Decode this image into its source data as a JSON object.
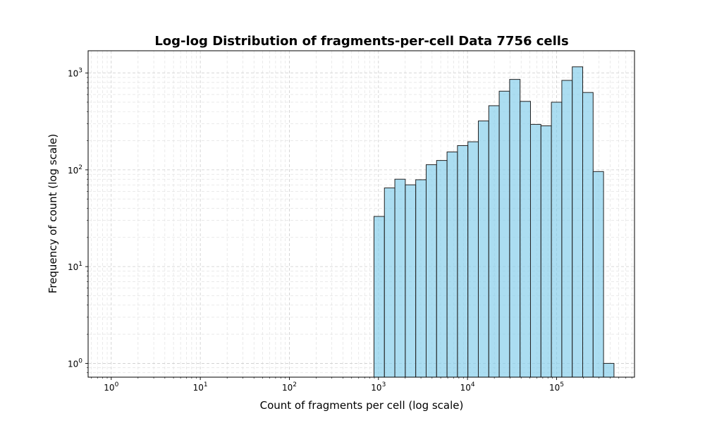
{
  "chart_data": {
    "type": "bar",
    "title": "Log-log Distribution of fragments-per-cell Data 7756 cells",
    "xlabel": "Count of fragments per cell (log scale)",
    "ylabel": "Frequency of count (log scale)",
    "x_scale": "log",
    "y_scale": "log",
    "xlim": [
      0.55,
      750000
    ],
    "ylim": [
      0.72,
      1700
    ],
    "grid": "on (major and minor, dashed)",
    "x_ticks": [
      {
        "base": "10",
        "exp": "0"
      },
      {
        "base": "10",
        "exp": "1"
      },
      {
        "base": "10",
        "exp": "2"
      },
      {
        "base": "10",
        "exp": "3"
      },
      {
        "base": "10",
        "exp": "4"
      },
      {
        "base": "10",
        "exp": "5"
      }
    ],
    "y_ticks": [
      {
        "base": "10",
        "exp": "0"
      },
      {
        "base": "10",
        "exp": "1"
      },
      {
        "base": "10",
        "exp": "2"
      },
      {
        "base": "10",
        "exp": "3"
      }
    ],
    "bins": [
      {
        "x0": 891,
        "x1": 1167,
        "count": 33
      },
      {
        "x0": 1167,
        "x1": 1528,
        "count": 65
      },
      {
        "x0": 1528,
        "x1": 2002,
        "count": 80
      },
      {
        "x0": 2002,
        "x1": 2622,
        "count": 70
      },
      {
        "x0": 2622,
        "x1": 3434,
        "count": 79
      },
      {
        "x0": 3434,
        "x1": 4497,
        "count": 113
      },
      {
        "x0": 4497,
        "x1": 5890,
        "count": 125
      },
      {
        "x0": 5890,
        "x1": 7714,
        "count": 153
      },
      {
        "x0": 7714,
        "x1": 10103,
        "count": 178
      },
      {
        "x0": 10103,
        "x1": 13231,
        "count": 195
      },
      {
        "x0": 13231,
        "x1": 17328,
        "count": 320
      },
      {
        "x0": 17328,
        "x1": 22694,
        "count": 460
      },
      {
        "x0": 22694,
        "x1": 29722,
        "count": 650
      },
      {
        "x0": 29722,
        "x1": 38926,
        "count": 860
      },
      {
        "x0": 38926,
        "x1": 50980,
        "count": 510
      },
      {
        "x0": 50980,
        "x1": 66767,
        "count": 295
      },
      {
        "x0": 66767,
        "x1": 87444,
        "count": 285
      },
      {
        "x0": 87444,
        "x1": 114523,
        "count": 500
      },
      {
        "x0": 114523,
        "x1": 149988,
        "count": 840
      },
      {
        "x0": 149988,
        "x1": 196435,
        "count": 1160
      },
      {
        "x0": 196435,
        "x1": 257265,
        "count": 630
      },
      {
        "x0": 257265,
        "x1": 336933,
        "count": 96
      },
      {
        "x0": 336933,
        "x1": 441273,
        "count": 1
      }
    ]
  }
}
